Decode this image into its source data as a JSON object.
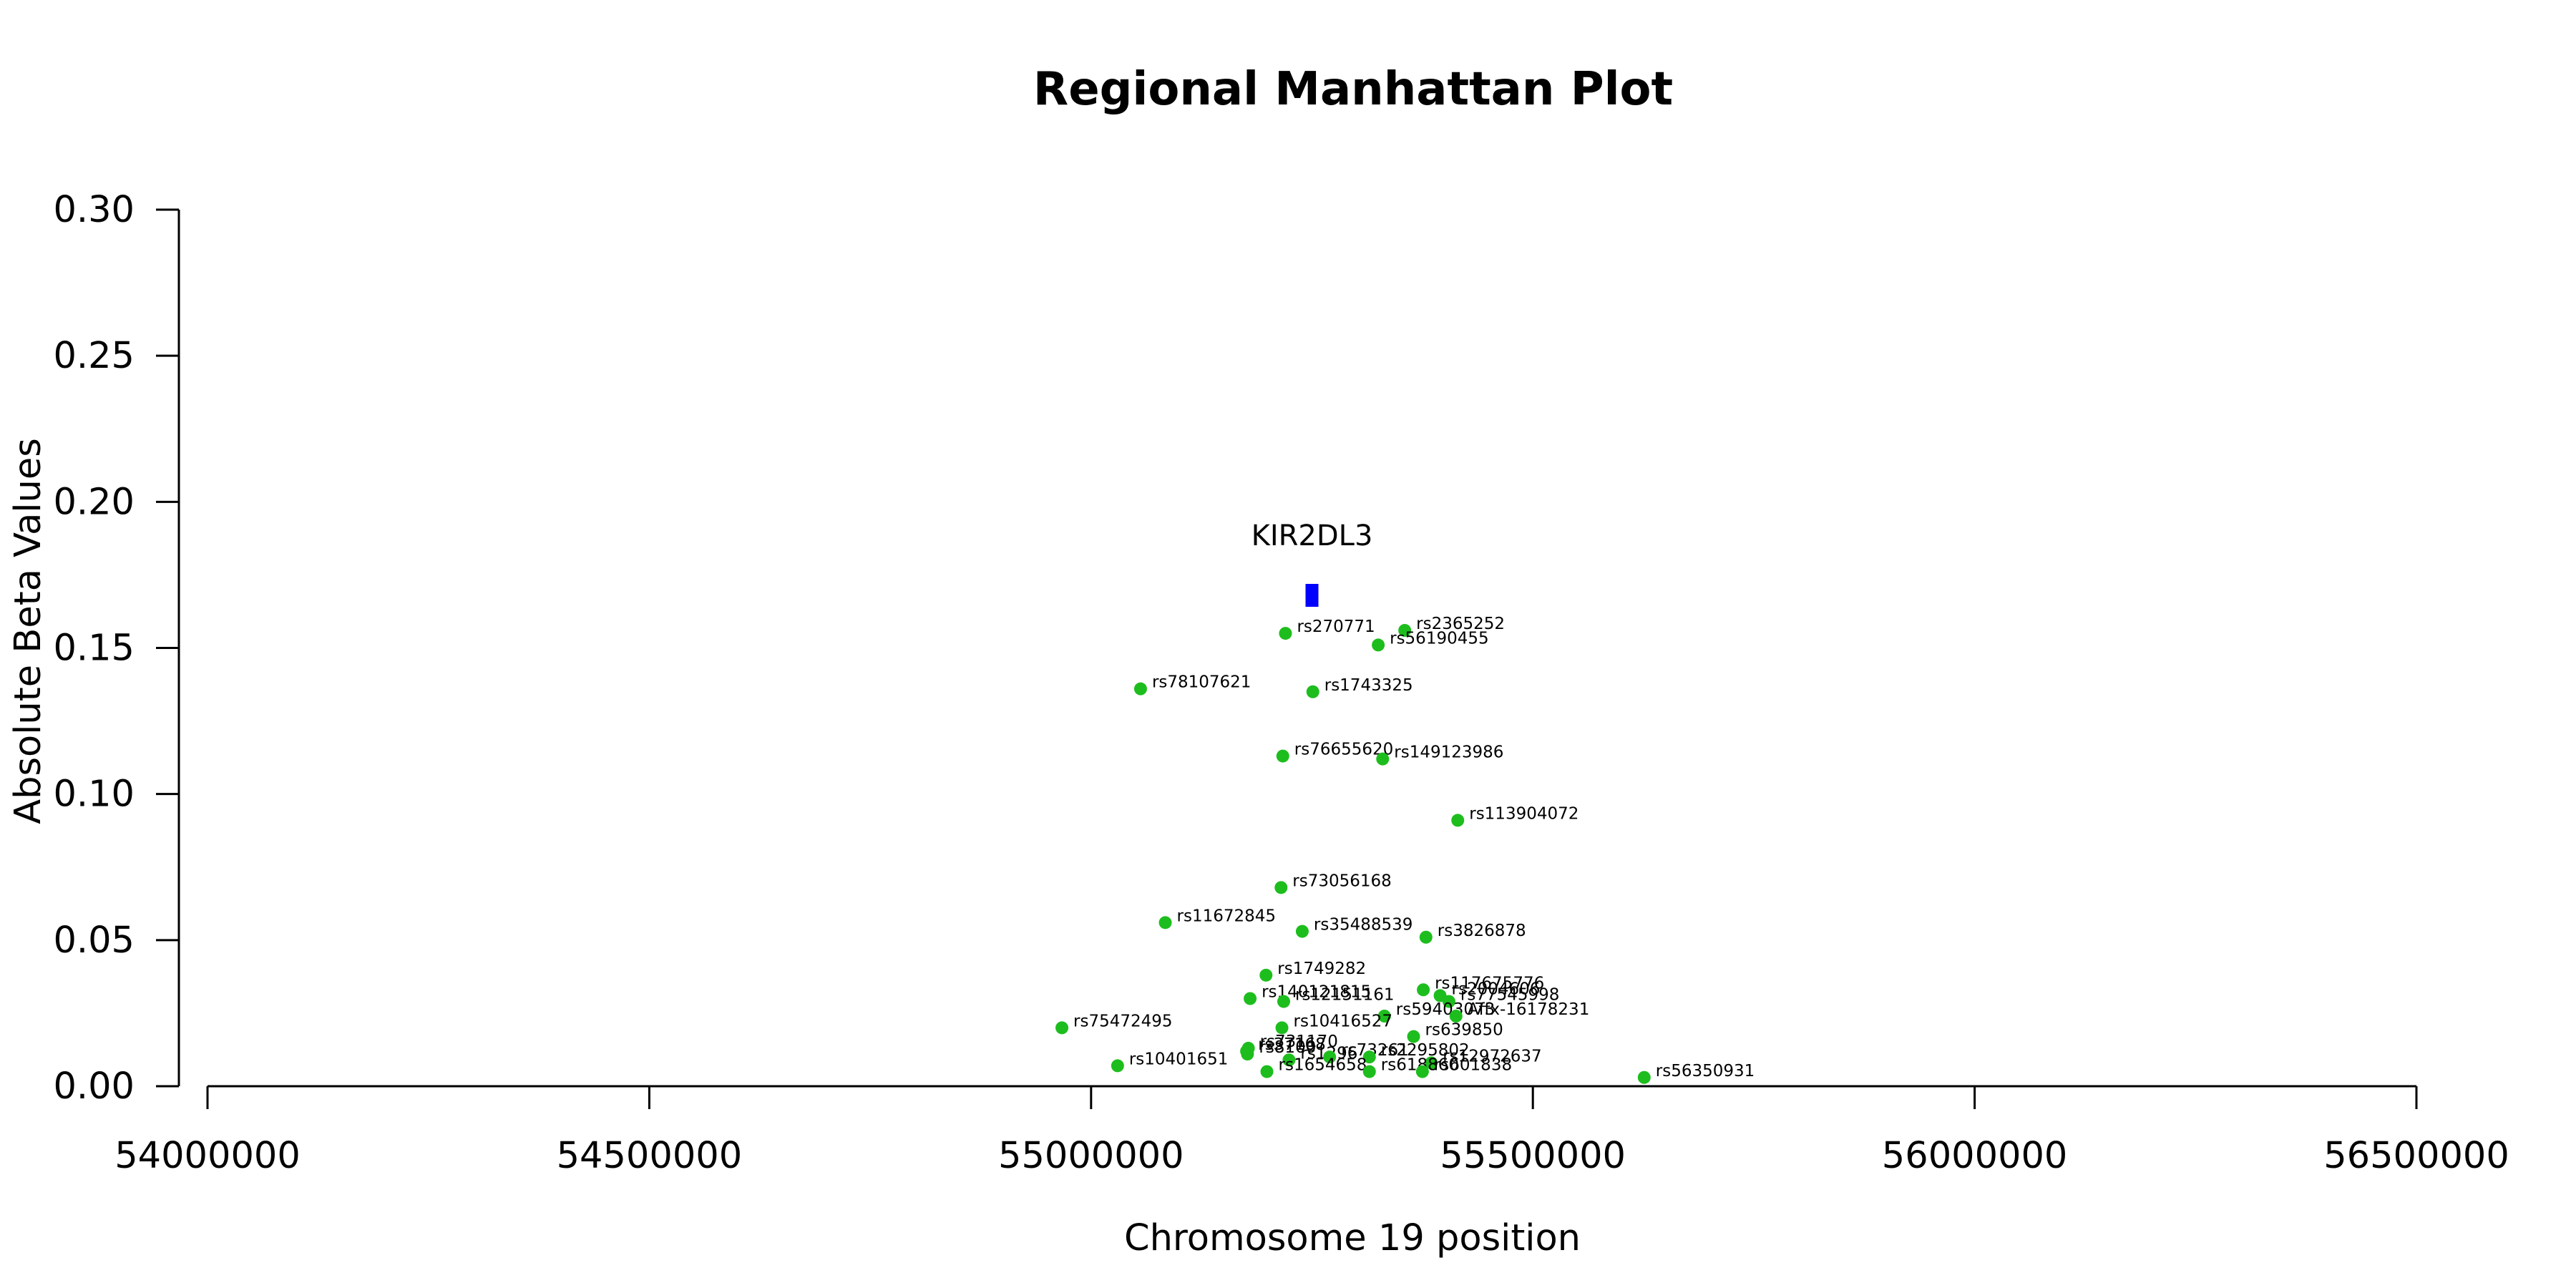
{
  "chart_data": {
    "type": "scatter",
    "title": "Regional Manhattan Plot",
    "xlabel": "Chromosome 19 position",
    "ylabel": "Absolute Beta Values",
    "xlim": [
      54000000,
      56500000
    ],
    "ylim": [
      0,
      0.3
    ],
    "xticks": [
      54000000,
      54500000,
      55000000,
      55500000,
      56000000,
      56500000
    ],
    "yticks": [
      0.0,
      0.05,
      0.1,
      0.15,
      0.2,
      0.25,
      0.3
    ],
    "point_color": "#1ebd1e",
    "grid": false,
    "gene": {
      "name": "KIR2DL3",
      "x": 55250000,
      "y": 0.168,
      "color": "#0000ff"
    },
    "points": [
      {
        "label": "rs270771",
        "x": 55220000,
        "y": 0.155
      },
      {
        "label": "rs2365252",
        "x": 55355000,
        "y": 0.156
      },
      {
        "label": "rs56190455",
        "x": 55325000,
        "y": 0.151
      },
      {
        "label": "rs78107621",
        "x": 55056000,
        "y": 0.136
      },
      {
        "label": "rs1743325",
        "x": 55251000,
        "y": 0.135
      },
      {
        "label": "rs76655620",
        "x": 55217000,
        "y": 0.113
      },
      {
        "label": "rs149123986",
        "x": 55330000,
        "y": 0.112
      },
      {
        "label": "rs113904072",
        "x": 55415000,
        "y": 0.091
      },
      {
        "label": "rs73056168",
        "x": 55215000,
        "y": 0.068
      },
      {
        "label": "rs11672845",
        "x": 55084000,
        "y": 0.056
      },
      {
        "label": "rs35488539",
        "x": 55239000,
        "y": 0.053
      },
      {
        "label": "rs3826878",
        "x": 55379000,
        "y": 0.051
      },
      {
        "label": "rs1749282",
        "x": 55198000,
        "y": 0.038
      },
      {
        "label": "rs117675776",
        "x": 55376000,
        "y": 0.033
      },
      {
        "label": "rs2004606",
        "x": 55395000,
        "y": 0.031
      },
      {
        "label": "rs77545998",
        "x": 55405000,
        "y": 0.029
      },
      {
        "label": "rs140121815",
        "x": 55180000,
        "y": 0.03
      },
      {
        "label": "rs12151161",
        "x": 55218000,
        "y": 0.029
      },
      {
        "label": "rs59403073",
        "x": 55332000,
        "y": 0.024
      },
      {
        "label": "Affx-16178231",
        "x": 55413000,
        "y": 0.024
      },
      {
        "label": "rs75472495",
        "x": 54967000,
        "y": 0.02
      },
      {
        "label": "rs10416527",
        "x": 55216000,
        "y": 0.02
      },
      {
        "label": "rs639850",
        "x": 55365000,
        "y": 0.017
      },
      {
        "label": "rs731170",
        "x": 55178000,
        "y": 0.013
      },
      {
        "label": "rs37168",
        "x": 55176000,
        "y": 0.012
      },
      {
        "label": "rs8100",
        "x": 55177000,
        "y": 0.011
      },
      {
        "label": "rs1296",
        "x": 55224000,
        "y": 0.009
      },
      {
        "label": "rs73261",
        "x": 55270000,
        "y": 0.01
      },
      {
        "label": "rs2295802",
        "x": 55315000,
        "y": 0.01
      },
      {
        "label": "rs12972637",
        "x": 55385000,
        "y": 0.008
      },
      {
        "label": "rs10401651",
        "x": 55030000,
        "y": 0.007
      },
      {
        "label": "rs1654658",
        "x": 55199000,
        "y": 0.005
      },
      {
        "label": "rs618860",
        "x": 55315000,
        "y": 0.005
      },
      {
        "label": "rs601838",
        "x": 55375000,
        "y": 0.005
      },
      {
        "label": "rs56350931",
        "x": 55626000,
        "y": 0.003
      }
    ]
  }
}
